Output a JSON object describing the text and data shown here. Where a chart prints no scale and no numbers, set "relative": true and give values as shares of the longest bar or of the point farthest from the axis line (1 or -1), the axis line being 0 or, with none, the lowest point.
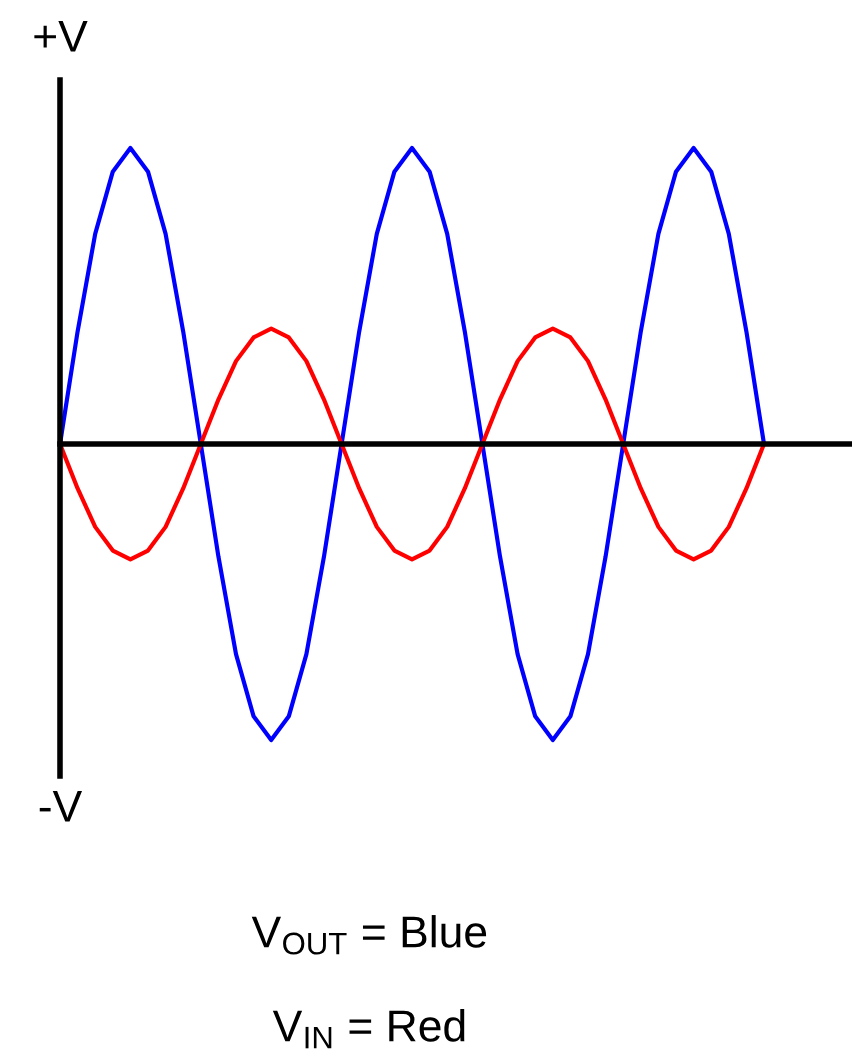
{
  "chart_data": {
    "type": "line",
    "relative": true,
    "tick_labels": false,
    "legend": false,
    "marker": "none",
    "line_style": "solid",
    "categories": [
      null,
      null,
      null,
      null,
      null,
      null,
      null,
      null,
      null,
      null,
      null,
      null,
      null,
      null,
      null,
      null,
      null,
      null,
      null,
      null,
      null,
      null,
      null,
      null,
      null,
      null,
      null,
      null,
      null,
      null,
      null,
      null,
      null,
      null,
      null,
      null,
      null,
      null,
      null,
      null,
      null
    ],
    "series": [
      {
        "color": "#0000ff",
        "values": [
          0,
          0.38,
          0.71,
          0.92,
          1,
          0.92,
          0.71,
          0.38,
          0,
          -0.38,
          -0.71,
          -0.92,
          -1,
          -0.92,
          -0.71,
          -0.38,
          0,
          0.38,
          0.71,
          0.92,
          1,
          0.92,
          0.71,
          0.38,
          0,
          -0.38,
          -0.71,
          -0.92,
          -1,
          -0.92,
          -0.71,
          -0.38,
          0,
          0.38,
          0.71,
          0.92,
          1,
          0.92,
          0.71,
          0.38,
          0
        ]
      },
      {
        "color": "#ff0000",
        "values": [
          0,
          -0.15,
          -0.28,
          -0.36,
          -0.39,
          -0.36,
          -0.28,
          -0.15,
          0,
          0.15,
          0.28,
          0.36,
          0.39,
          0.36,
          0.28,
          0.15,
          0,
          -0.15,
          -0.28,
          -0.36,
          -0.39,
          -0.36,
          -0.28,
          -0.15,
          0,
          0.15,
          0.28,
          0.36,
          0.39,
          0.36,
          0.28,
          0.15,
          0,
          -0.15,
          -0.28,
          -0.36,
          -0.39,
          -0.36,
          -0.28,
          -0.15,
          0
        ]
      }
    ],
    "annotations": [
      "+V",
      "-V",
      "V$_{OUT}$ = Blue",
      "V$_{IN}$ = Red"
    ]
  }
}
